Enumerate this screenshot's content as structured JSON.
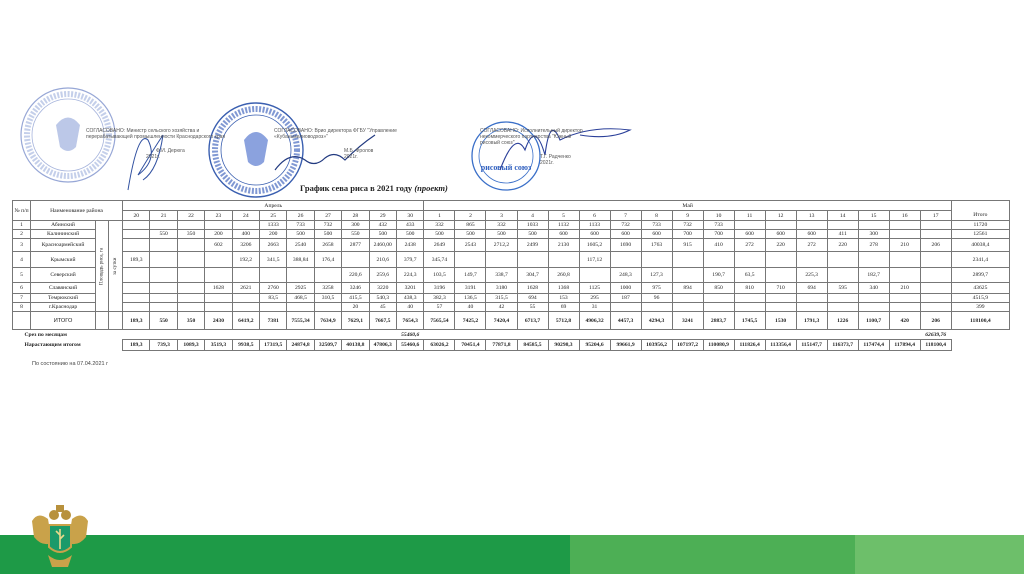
{
  "approvals": [
    {
      "text": "СОГЛАСОВАНО: Министр сельского хозяйства и перерабатывающей промышленности Краснодарского края",
      "signer": "Ф.И. Дерюга",
      "date": "2021г."
    },
    {
      "text": "СОГЛАСОВАНО: Врио директора ФГБУ \"Управление «Кубаньмелиоводхоз»\"",
      "signer": "М.Б. Фролов",
      "date": "2021г."
    },
    {
      "text": "СОГЛАСОВАНО: Исполнительный директор некоммерческого партнерства \"Южный рисовый союз\"",
      "signer": "Т.Г. Радченко",
      "date": "2021г.",
      "stamp_text": "рисовый союз"
    }
  ],
  "title": "График сева риса в 2021 году",
  "title_suffix": "(проект)",
  "table": {
    "header": {
      "num": "№ п/п",
      "name": "Наименование района",
      "area": "Площадь риса, га",
      "per_day": "за сутки",
      "month_april": "Апрель",
      "month_may": "Май",
      "total": "Итого",
      "days_april": [
        "20",
        "21",
        "22",
        "23",
        "24",
        "25",
        "26",
        "27",
        "28",
        "29",
        "30"
      ],
      "days_may": [
        "1",
        "2",
        "3",
        "4",
        "5",
        "6",
        "7",
        "8",
        "9",
        "10",
        "11",
        "12",
        "13",
        "14",
        "15",
        "16",
        "17"
      ]
    },
    "rows": [
      {
        "num": "1",
        "name": "Абинский",
        "values": [
          "",
          "",
          "",
          "",
          "",
          "1333",
          "733",
          "732",
          "300",
          "432",
          "433",
          "332",
          "865",
          "332",
          "1033",
          "1132",
          "1133",
          "732",
          "733",
          "732",
          "733",
          "",
          "",
          "",
          "",
          "",
          "",
          ""
        ],
        "total": "11720"
      },
      {
        "num": "2",
        "name": "Калининский",
        "values": [
          "",
          "550",
          "350",
          "200",
          "400",
          "200",
          "500",
          "500",
          "550",
          "500",
          "500",
          "500",
          "500",
          "500",
          "500",
          "600",
          "600",
          "600",
          "600",
          "700",
          "700",
          "600",
          "600",
          "600",
          "411",
          "300",
          "",
          ""
        ],
        "total": "12561"
      },
      {
        "num": "3",
        "name": "Красноармейский",
        "values": [
          "",
          "",
          "",
          "602",
          "3206",
          "2663",
          "2540",
          "2658",
          "2877",
          "2460,00",
          "2438",
          "2649",
          "2543",
          "2712,2",
          "2499",
          "2130",
          "1605,2",
          "1690",
          "1763",
          "915",
          "410",
          "272",
          "220",
          "272",
          "220",
          "278",
          "210",
          "206"
        ],
        "total": "40038,4"
      },
      {
        "num": "4",
        "name": "Крымский",
        "values": [
          "189,3",
          "",
          "",
          "",
          "192,2",
          "341,5",
          "388,84",
          "176,4",
          "",
          "210,6",
          "379,7",
          "345,74",
          "",
          "",
          "",
          "",
          "117,12",
          "",
          "",
          "",
          "",
          "",
          "",
          "",
          "",
          "",
          "",
          ""
        ],
        "total": "2341,4"
      },
      {
        "num": "5",
        "name": "Северский",
        "values": [
          "",
          "",
          "",
          "",
          "",
          "",
          "",
          "",
          "220,6",
          "259,6",
          "224,3",
          "103,5",
          "149,7",
          "338,7",
          "304,7",
          "260,8",
          "",
          "248,3",
          "127,3",
          "",
          "190,7",
          "63,5",
          "",
          "225,3",
          "",
          "182,7",
          "",
          ""
        ],
        "total": "2899,7"
      },
      {
        "num": "6",
        "name": "Славянский",
        "values": [
          "",
          "",
          "",
          "1628",
          "2621",
          "2760",
          "2925",
          "3258",
          "3246",
          "3220",
          "3201",
          "3196",
          "3191",
          "3180",
          "1628",
          "1368",
          "1125",
          "1000",
          "975",
          "894",
          "850",
          "810",
          "710",
          "694",
          "595",
          "340",
          "210",
          ""
        ],
        "total": "43625"
      },
      {
        "num": "7",
        "name": "Темрюкский",
        "values": [
          "",
          "",
          "",
          "",
          "",
          "83,5",
          "468,5",
          "310,5",
          "415,5",
          "540,3",
          "438,3",
          "382,3",
          "136,5",
          "315,5",
          "694",
          "153",
          "295",
          "187",
          "96",
          "",
          "",
          "",
          "",
          "",
          "",
          "",
          "",
          ""
        ],
        "total": "4515,9"
      },
      {
        "num": "8",
        "name": "г.Краснодар",
        "values": [
          "",
          "",
          "",
          "",
          "",
          "",
          "",
          "",
          "20",
          "45",
          "40",
          "57",
          "40",
          "42",
          "55",
          "69",
          "31",
          "",
          "",
          "",
          "",
          "",
          "",
          "",
          "",
          "",
          "",
          ""
        ],
        "total": "399"
      }
    ],
    "itogo": {
      "label": "ИТОГО",
      "values": [
        "189,3",
        "550",
        "350",
        "2430",
        "6419,2",
        "7381",
        "7555,34",
        "7634,9",
        "7629,1",
        "7667,5",
        "7654,3",
        "7565,54",
        "7425,2",
        "7420,4",
        "6713,7",
        "5712,8",
        "4906,32",
        "4457,3",
        "4294,3",
        "3241",
        "2883,7",
        "1745,5",
        "1530",
        "1791,3",
        "1226",
        "1100,7",
        "420",
        "206"
      ],
      "total": "118100,4"
    },
    "srez": {
      "label": "Срез по месяцам",
      "april": "55460,6",
      "may": "62639,76"
    },
    "cumulative": {
      "label": "Нарастающим итогом",
      "values": [
        "189,3",
        "739,3",
        "1089,3",
        "3519,3",
        "9938,5",
        "17319,5",
        "24874,8",
        "32509,7",
        "40138,8",
        "47806,3",
        "55460,6",
        "63026,2",
        "70451,4",
        "77871,8",
        "84585,5",
        "90298,3",
        "95204,6",
        "99661,9",
        "103956,2",
        "107197,2",
        "110080,9",
        "111826,4",
        "113356,4",
        "115147,7",
        "116373,7",
        "117474,4",
        "117894,4",
        "118100,4"
      ]
    }
  },
  "as_of": "По состоянию на 07.04.2021 г",
  "colors": {
    "band_dark": "#1e9a47",
    "band_mid": "#4daf55",
    "band_light": "#6dbf6a",
    "stamp_blue": "#3a5fb0"
  }
}
